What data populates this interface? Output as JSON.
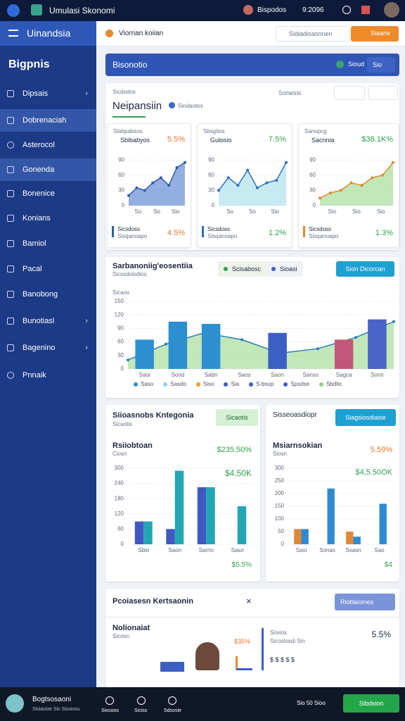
{
  "status_bar": {
    "app_name": "Umulasi Skonomi",
    "user": "Bispodos",
    "time": "9:2096"
  },
  "sidebar": {
    "header": "Uinandsia",
    "brand": "Bigpnis",
    "items": [
      "Dipsais",
      "Dobrenaciah",
      "Asterocol",
      "Gonenda",
      "Bonenice",
      "Konians",
      "Bamiol",
      "Pacal",
      "Banobong",
      "Bunotiasl",
      "Bagenino",
      "Pnnaik"
    ]
  },
  "topbar": {
    "title": "Viorrian koiian",
    "search": "Sidiadioasnnen",
    "button": "Siaarie"
  },
  "banner": {
    "title": "Bisonotio",
    "status": "Sioud",
    "badge": "Sio"
  },
  "overview": {
    "label": "Sicdodos",
    "title": "Neipansiin",
    "subtitle": "Sindaotes",
    "search": "Sonessi",
    "cards": [
      {
        "label": "Slabpabsos",
        "title": "Sbibabyos",
        "value": "5.5%",
        "footer": "Sicsdoss",
        "footer_sub": "Sisqanoapo",
        "footer_value": "4.5%",
        "chart": {
          "type": "area",
          "ylim": [
            0,
            100
          ],
          "yticks": [
            0,
            30,
            60,
            90
          ],
          "categories": [
            "So",
            "So",
            "Sio"
          ],
          "series": [
            {
              "color": "#3a6cc6",
              "line_color": "#2d5bb0",
              "values": [
                20,
                35,
                30,
                45,
                55,
                40,
                75,
                85
              ]
            }
          ]
        }
      },
      {
        "label": "Sbsgtios",
        "title": "Gulosio",
        "value": "7.5%",
        "footer": "Sicsdoss",
        "footer_sub": "Sisqanoapo",
        "footer_value": "1.2%",
        "chart": {
          "type": "area",
          "ylim": [
            0,
            100
          ],
          "yticks": [
            0,
            30,
            60,
            90
          ],
          "categories": [
            "So",
            "So",
            "Sio"
          ],
          "series": [
            {
              "color": "#9bd8ea",
              "line_color": "#2c6fc0",
              "values": [
                30,
                55,
                40,
                70,
                35,
                45,
                50,
                85
              ]
            }
          ]
        }
      },
      {
        "label": "Sanopcg",
        "title": "Sacnnia",
        "value": "$38.1K%",
        "footer": "Sicsdoss",
        "footer_sub": "Sisqanoapo",
        "footer_value": "1.3%",
        "chart": {
          "type": "area",
          "ylim": [
            0,
            100
          ],
          "yticks": [
            0,
            30,
            60,
            90
          ],
          "categories": [
            "Sio",
            "Sio",
            "Sio"
          ],
          "series": [
            {
              "color": "#8fd480",
              "line_color": "#e08a2c",
              "values": [
                15,
                25,
                30,
                45,
                40,
                55,
                60,
                85
              ]
            }
          ]
        }
      }
    ]
  },
  "trend": {
    "title": "Sarbanoniig'eosentiia",
    "subtitle": "Sicssdoisdios",
    "chips": [
      "Scisabosc",
      "Sioasi"
    ],
    "button": "Sion Dicorcan",
    "axis_label": "Sicaos",
    "chart": {
      "type": "combo",
      "ylim": [
        0,
        150
      ],
      "yticks": [
        0,
        30,
        60,
        90,
        120,
        150
      ],
      "categories": [
        "Saoi",
        "Sond",
        "Sabn",
        "Saos",
        "Saon",
        "Sanso",
        "Sagca",
        "Sonn"
      ],
      "series": [
        {
          "kind": "area",
          "color": "#8fd480",
          "line_color": "#2a7fb8",
          "values": [
            20,
            55,
            80,
            65,
            35,
            45,
            70,
            105
          ]
        },
        {
          "kind": "bar",
          "colors": [
            "#2c8fd0",
            "#2c8fd0",
            "#2c8fd0",
            "#2c8fd0",
            "#3b5fc4",
            "#3b5fc4",
            "#c2567a",
            "#4a63c8"
          ],
          "values": [
            65,
            105,
            100,
            null,
            80,
            null,
            65,
            110
          ]
        }
      ]
    },
    "legend": [
      {
        "label": "Saso",
        "color": "#2c8fd0"
      },
      {
        "label": "Sasdo",
        "color": "#8fd0e8"
      },
      {
        "label": "Siso",
        "color": "#e0a030"
      },
      {
        "label": "Sia",
        "color": "#3b5fc4"
      },
      {
        "label": "S-bsup",
        "color": "#3b5fc4"
      },
      {
        "label": "Spsdse",
        "color": "#3b5fc4"
      },
      {
        "label": "Sbdtic",
        "color": "#8fd480"
      }
    ]
  },
  "compare": [
    {
      "header": "Siioasnobs Kntegonia",
      "sub": "Sicaotis",
      "button": "Sicaotis",
      "title": "Rsiiobtoan",
      "caption": "Ciosn",
      "value": "$235.50%",
      "value2": "$4,50K",
      "footer_value": "$5.5%",
      "chart": {
        "type": "bar",
        "ylim": [
          0,
          300
        ],
        "yticks": [
          0,
          60,
          120,
          180,
          240,
          300
        ],
        "categories": [
          "Sbio",
          "Saon",
          "Sarrio",
          "Sasn"
        ],
        "series": [
          {
            "color": "#4058c2",
            "values": [
              90,
              60,
              225,
              null
            ]
          },
          {
            "color": "#22a6b3",
            "values": [
              90,
              290,
              225,
              150
            ]
          }
        ]
      }
    },
    {
      "header": "Sisseoasdiopr",
      "button": "Siagsiosdiaise",
      "title": "Msiarnsokian",
      "caption": "Siosn",
      "value": "5.59%",
      "value2": "$4,5.50OK",
      "footer_value": "$4",
      "chart": {
        "type": "bar",
        "ylim": [
          0,
          300
        ],
        "yticks": [
          0,
          50,
          100,
          150,
          200,
          250,
          300
        ],
        "categories": [
          "Saxi",
          "Sonas",
          "Ssasn",
          "Sao"
        ],
        "series": [
          {
            "color": "#e0893a",
            "values": [
              60,
              null,
              50,
              null
            ]
          },
          {
            "color": "#2e8bd1",
            "values": [
              60,
              220,
              30,
              160
            ]
          }
        ]
      }
    }
  ],
  "bottom": {
    "title": "Pcoiasesn Kertsaonin",
    "close": "×",
    "dropdown": "Riotlaosnes",
    "left_title": "Nolionaiat",
    "left_sub": "Sicosn",
    "left_value": "$35%",
    "right_title": "Sovios",
    "right_sub": "Sicoslosdi Sin",
    "right_value": "5.5%",
    "right_row": "$ $ $ $ $"
  },
  "footer": {
    "title": "Bogtsosaoni",
    "subtitle": "Sisiasioe Sis Sissiosu",
    "icons": [
      "Siosoos",
      "Siciss",
      "Sdsosie"
    ],
    "meta": "Sio 50 Sioo",
    "button": "Sibdsion"
  }
}
